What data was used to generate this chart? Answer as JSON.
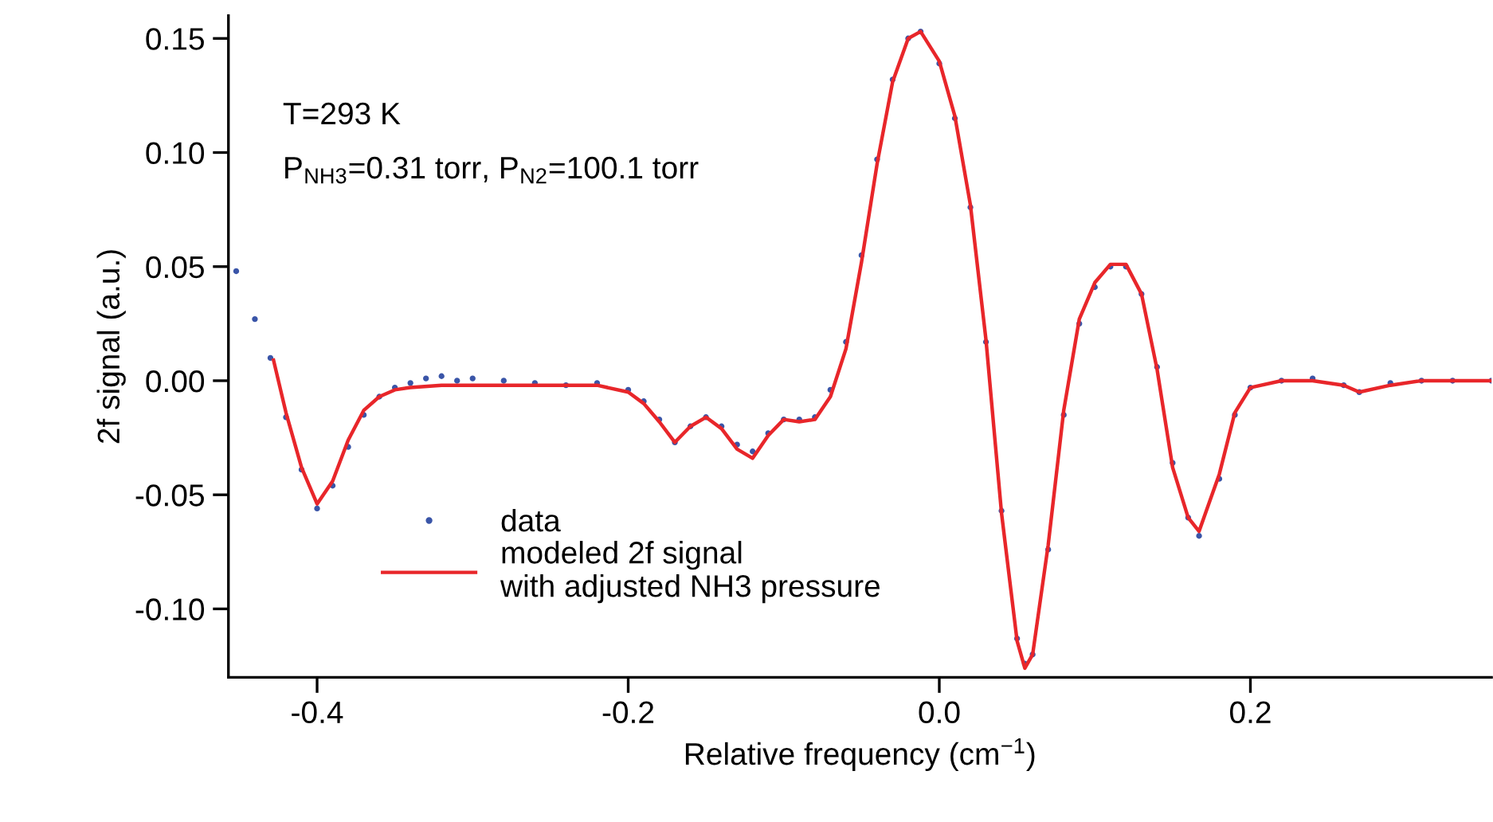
{
  "chart_data": {
    "type": "line",
    "xlabel": "Relative frequency (cm$^{−1}$)",
    "ylabel": "2f signal (a.u.)",
    "annotations": [
      "T=293 K",
      "P$_{NH3}$=0.31 torr, P$_{N2}$=100.1 torr"
    ],
    "xlim": [
      -0.457,
      0.355
    ],
    "ylim": [
      -0.13,
      0.16
    ],
    "xticks": [
      -0.4,
      -0.2,
      {
        "value": 0,
        "label": "0.0"
      },
      0.2
    ],
    "yticks": [
      {
        "value": -0.1,
        "label": "-0.10"
      },
      -0.05,
      {
        "value": 0,
        "label": "0.00"
      },
      0.05,
      {
        "value": 0.1,
        "label": "0.10"
      },
      0.15
    ],
    "grid": false,
    "legend": "bottom left",
    "series": [
      {
        "name": "data",
        "type": "scatter",
        "marker": "circle",
        "color": "#3a55a8",
        "x": [
          -0.452,
          -0.44,
          -0.43,
          -0.42,
          -0.41,
          -0.4,
          -0.39,
          -0.38,
          -0.37,
          -0.36,
          -0.35,
          -0.34,
          -0.33,
          -0.32,
          -0.31,
          -0.3,
          -0.28,
          -0.26,
          -0.24,
          -0.22,
          -0.2,
          -0.19,
          -0.18,
          -0.17,
          -0.16,
          -0.15,
          -0.14,
          -0.13,
          -0.12,
          -0.11,
          -0.1,
          -0.09,
          -0.08,
          -0.07,
          -0.06,
          -0.05,
          -0.04,
          -0.03,
          -0.02,
          -0.012,
          0.0,
          0.01,
          0.02,
          0.03,
          0.04,
          0.05,
          0.055,
          0.06,
          0.07,
          0.08,
          0.09,
          0.1,
          0.11,
          0.12,
          0.13,
          0.14,
          0.15,
          0.16,
          0.167,
          0.18,
          0.19,
          0.2,
          0.22,
          0.24,
          0.26,
          0.27,
          0.29,
          0.31,
          0.33,
          0.355
        ],
        "values": [
          0.048,
          0.027,
          0.01,
          -0.016,
          -0.039,
          -0.056,
          -0.046,
          -0.029,
          -0.015,
          -0.007,
          -0.003,
          -0.001,
          0.001,
          0.002,
          0.0,
          0.001,
          0.0,
          -0.001,
          -0.002,
          -0.001,
          -0.004,
          -0.009,
          -0.017,
          -0.027,
          -0.02,
          -0.016,
          -0.02,
          -0.028,
          -0.031,
          -0.023,
          -0.017,
          -0.017,
          -0.016,
          -0.004,
          0.017,
          0.055,
          0.097,
          0.132,
          0.15,
          0.153,
          0.139,
          0.115,
          0.076,
          0.017,
          -0.057,
          -0.113,
          -0.124,
          -0.12,
          -0.074,
          -0.015,
          0.025,
          0.041,
          0.05,
          0.05,
          0.038,
          0.006,
          -0.036,
          -0.06,
          -0.068,
          -0.043,
          -0.015,
          -0.003,
          0.0,
          0.001,
          -0.002,
          -0.005,
          -0.001,
          0.0,
          0.0,
          0.0
        ]
      },
      {
        "name": "modeled 2f signal\nwith adjusted NH3 pressure",
        "color": "#e8262a",
        "marker": "none",
        "line_style": "solid",
        "x": [
          -0.428,
          -0.42,
          -0.41,
          -0.4,
          -0.39,
          -0.38,
          -0.37,
          -0.36,
          -0.35,
          -0.34,
          -0.32,
          -0.3,
          -0.26,
          -0.22,
          -0.2,
          -0.19,
          -0.18,
          -0.17,
          -0.16,
          -0.15,
          -0.14,
          -0.13,
          -0.12,
          -0.11,
          -0.1,
          -0.09,
          -0.08,
          -0.07,
          -0.06,
          -0.05,
          -0.04,
          -0.03,
          -0.02,
          -0.012,
          0.0,
          0.01,
          0.02,
          0.03,
          0.04,
          0.05,
          0.055,
          0.06,
          0.07,
          0.08,
          0.09,
          0.1,
          0.11,
          0.12,
          0.13,
          0.14,
          0.15,
          0.16,
          0.167,
          0.18,
          0.19,
          0.2,
          0.22,
          0.24,
          0.26,
          0.27,
          0.29,
          0.31,
          0.33,
          0.355
        ],
        "values": [
          0.009,
          -0.014,
          -0.038,
          -0.054,
          -0.044,
          -0.026,
          -0.013,
          -0.007,
          -0.004,
          -0.003,
          -0.002,
          -0.002,
          -0.002,
          -0.002,
          -0.005,
          -0.01,
          -0.018,
          -0.027,
          -0.02,
          -0.016,
          -0.021,
          -0.03,
          -0.034,
          -0.024,
          -0.017,
          -0.018,
          -0.017,
          -0.007,
          0.014,
          0.052,
          0.095,
          0.131,
          0.15,
          0.153,
          0.14,
          0.116,
          0.077,
          0.018,
          -0.058,
          -0.114,
          -0.126,
          -0.12,
          -0.072,
          -0.013,
          0.027,
          0.043,
          0.051,
          0.051,
          0.038,
          0.005,
          -0.038,
          -0.06,
          -0.066,
          -0.041,
          -0.014,
          -0.003,
          0.0,
          0.0,
          -0.002,
          -0.005,
          -0.002,
          0.0,
          0.0,
          0.0
        ]
      }
    ]
  }
}
